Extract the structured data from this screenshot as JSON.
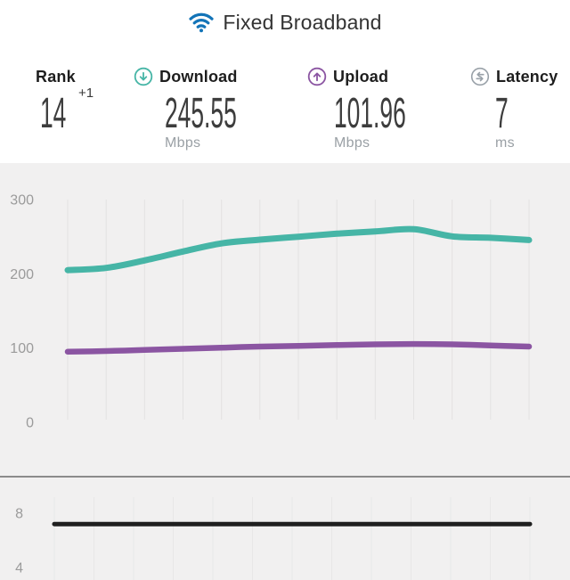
{
  "header": {
    "title": "Fixed Broadband",
    "icon": "wifi-icon"
  },
  "stats": {
    "rank": {
      "label": "Rank",
      "value": "14",
      "change": "+1",
      "unit": ""
    },
    "download": {
      "label": "Download",
      "value": "245.55",
      "unit": "Mbps",
      "icon": "circle-down-arrow-icon"
    },
    "upload": {
      "label": "Upload",
      "value": "101.96",
      "unit": "Mbps",
      "icon": "circle-up-arrow-icon"
    },
    "latency": {
      "label": "Latency",
      "value": "7",
      "unit": "ms",
      "icon": "circle-latency-arrows-icon"
    }
  },
  "colors": {
    "wifi_blue": "#1374b8",
    "download_teal": "#46b5a6",
    "upload_purple": "#8b55a2",
    "latency_gray_icon": "#99a1a8",
    "latency_line_black": "#1f1f1f",
    "chart_background": "#f1f0f0",
    "separator_gray": "#8b8b8b",
    "tick_label_gray": "#9b9b9b"
  },
  "chart_data": [
    {
      "type": "line",
      "title": "Download and Upload history (Mbps)",
      "x": [
        0,
        1,
        2,
        3,
        4,
        5,
        6,
        7,
        8,
        9,
        10,
        11,
        12
      ],
      "x_labels": null,
      "series": [
        {
          "name": "Download (Mbps)",
          "color": "#46b5a6",
          "values": [
            205,
            208,
            218,
            230,
            241,
            246,
            250,
            254,
            257,
            260,
            250.5,
            248.5,
            245.55
          ]
        },
        {
          "name": "Upload (Mbps)",
          "color": "#8b55a2",
          "values": [
            95,
            96,
            97.5,
            99,
            100.5,
            102,
            103,
            104,
            105,
            105.5,
            105,
            103.5,
            101.96
          ]
        }
      ],
      "yticks": [
        300,
        200,
        100,
        0
      ],
      "ylim": [
        0,
        349
      ],
      "grid": "vertical",
      "legend": "none"
    },
    {
      "type": "line",
      "title": "Latency history (ms)",
      "x": [
        0,
        1,
        2,
        3,
        4,
        5,
        6,
        7,
        8,
        9,
        10,
        11,
        12
      ],
      "x_labels": null,
      "series": [
        {
          "name": "Latency (ms)",
          "color": "#1f1f1f",
          "values": [
            7.2,
            7.2,
            7.2,
            7.2,
            7.2,
            7.2,
            7.2,
            7.2,
            7.2,
            7.2,
            7.2,
            7.2,
            7.2
          ]
        }
      ],
      "yticks": [
        8,
        4
      ],
      "ylim": [
        3,
        10.6
      ],
      "grid": "vertical",
      "legend": "none"
    }
  ]
}
